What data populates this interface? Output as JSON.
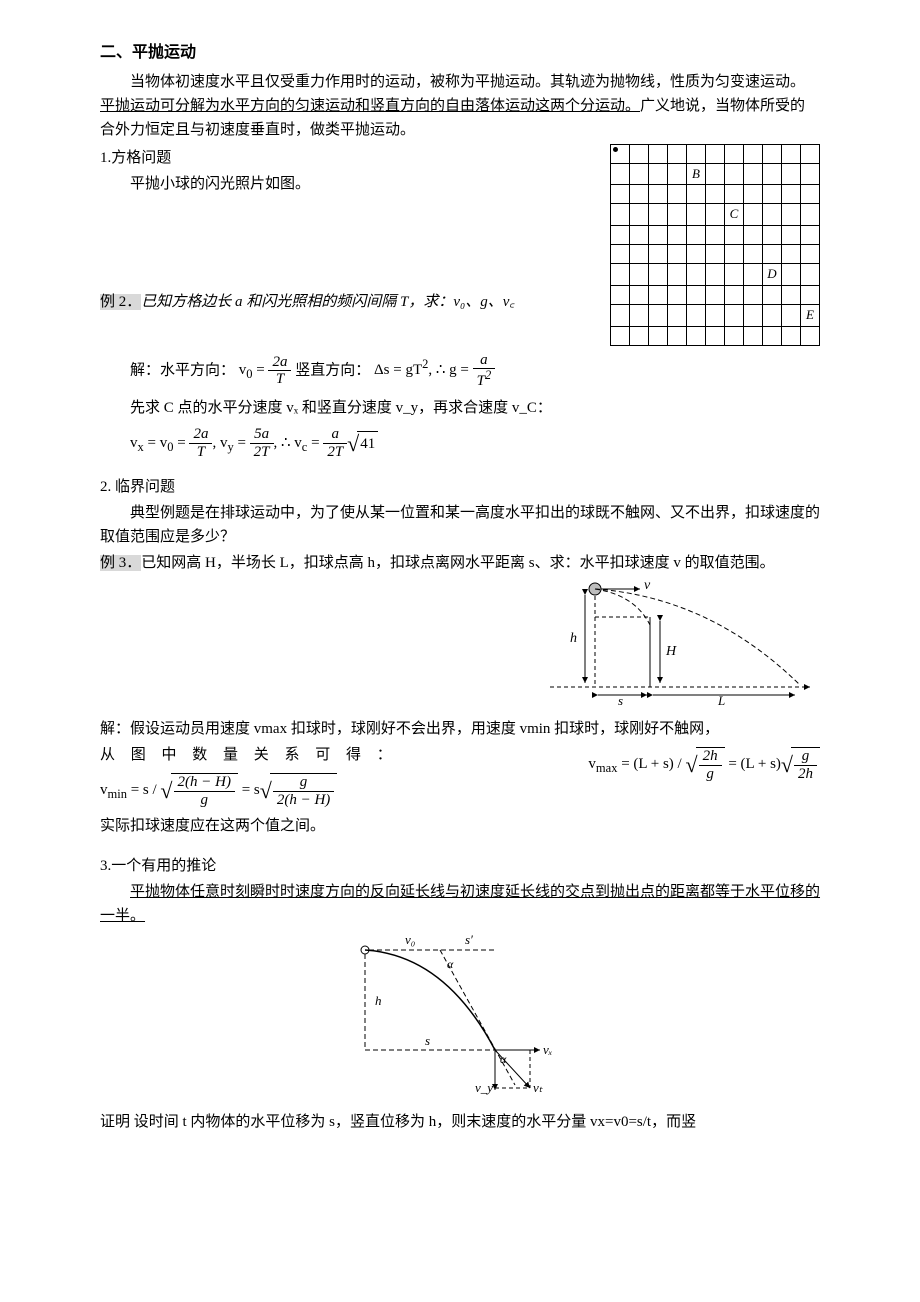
{
  "section": {
    "title": "二、平抛运动",
    "intro1": "当物体初速度水平且仅受重力作用时的运动，被称为平抛运动。其轨迹为抛物线，性质为匀变速运动。",
    "intro_underline": "平抛运动可分解为水平方向的匀速运动和竖直方向的自由落体运动这两个分运动。",
    "intro2": "广义地说，当物体所受的合外力恒定且与初速度垂直时，做类平抛运动。"
  },
  "q1": {
    "heading": "1.方格问题",
    "line": "平抛小球的闪光照片如图。",
    "grid_labels": {
      "B": "B",
      "C": "C",
      "D": "D",
      "E": "E"
    },
    "grid": {
      "rows": 10,
      "cols": 11
    }
  },
  "ex2": {
    "label": "例 2．",
    "stem": "已知方格边长 a 和闪光照相的频闪间隔 T，求：v₀、g、v꜀",
    "sol_prefix": "解：水平方向：",
    "sol_mid": "  竖直方向：",
    "line_c": "先求 C 点的水平分速度 vₓ 和竖直分速度 v_y，再求合速度 v_C："
  },
  "q2": {
    "heading": "2. 临界问题",
    "desc": "典型例题是在排球运动中，为了使从某一位置和某一高度水平扣出的球既不触网、又不出界，扣球速度的取值范围应是多少？"
  },
  "ex3": {
    "label": "例 3．",
    "stem": "已知网高 H，半场长 L，扣球点高 h，扣球点离网水平距离 s、求：水平扣球速度 v 的取值范围。",
    "sol_pre": "解：假设运动员用速度 vmax 扣球时，球刚好不会出界，用速度 vmin 扣球时，球刚好不触网，",
    "relation": "从  图  中  数  量  关  系  可  得 ：",
    "tail": "实际扣球速度应在这两个值之间。"
  },
  "q3": {
    "heading": "3.一个有用的推论",
    "underline": "平抛物体任意时刻瞬时时速度方向的反向延长线与初速度延长线的交点到抛出点的距离都等于水平位移的一半。",
    "proof": "证明  设时间 t 内物体的水平位移为 s，竖直位移为 h，则末速度的水平分量 vx=v0=s/t，而竖"
  },
  "vb": {
    "h": "h",
    "H": "H",
    "s": "s",
    "L": "L",
    "v": "v"
  },
  "cor": {
    "v0": "v₀",
    "sprime": "s′",
    "alpha1": "α",
    "h": "h",
    "s": "s",
    "alpha2": "α",
    "vx": "vₓ",
    "vy": "v_y",
    "vt": "vₜ"
  }
}
